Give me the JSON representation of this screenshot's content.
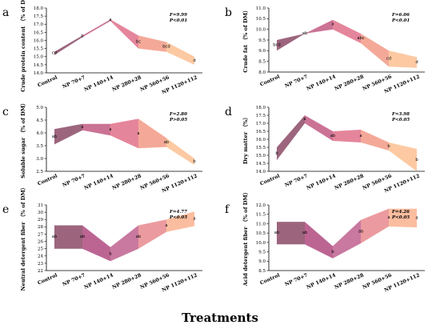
{
  "figure": {
    "x_title": "Treatments",
    "categories": [
      "Control",
      "NP 70+7",
      "NP 140+14",
      "NP 280+28",
      "NP 560+56",
      "NP 1120+112"
    ]
  },
  "chart_data": [
    {
      "type": "area",
      "panel_label": "a",
      "ylabel": "Crude protein content （% of DM）",
      "stat_f": "F=9.99",
      "stat_p": "P<0.01",
      "ylim": [
        14.0,
        18.0
      ],
      "yticks": [
        "14.0",
        "14.5",
        "15.0",
        "15.5",
        "16.0",
        "16.5",
        "17.0",
        "17.5",
        "18.0"
      ],
      "upper": [
        15.3,
        16.3,
        17.3,
        16.3,
        15.9,
        15.0
      ],
      "lower": [
        15.1,
        16.2,
        17.2,
        15.5,
        15.3,
        14.5
      ],
      "letters": [
        "cd",
        "b",
        "a",
        "bc",
        "bcd",
        "d"
      ],
      "colors": [
        "#8b4a66",
        "#c25a82",
        "#e0708a",
        "#f29a86",
        "#fbbf92"
      ]
    },
    {
      "type": "area",
      "panel_label": "b",
      "ylabel": "Crude fat （% of DM）",
      "stat_f": "F=6.06",
      "stat_p": "P<0.01",
      "ylim": [
        8.0,
        11.0
      ],
      "yticks": [
        "8.0",
        "8.5",
        "9.0",
        "9.5",
        "10.0",
        "10.5",
        "11.0"
      ],
      "upper": [
        9.5,
        9.8,
        10.45,
        9.8,
        9.0,
        8.7
      ],
      "lower": [
        9.0,
        9.8,
        10.0,
        9.35,
        8.25,
        8.2
      ],
      "letters": [
        "bcd",
        "ab",
        "a",
        "abc",
        "cd",
        "d"
      ],
      "colors": [
        "#8b4a66",
        "#c25a82",
        "#e0708a",
        "#f29a86",
        "#fbbf92"
      ]
    },
    {
      "type": "area",
      "panel_label": "c",
      "ylabel": "Soluble sugar （% of DM）",
      "stat_f": "F=2.80",
      "stat_p": "P>0.05",
      "ylim": [
        2.5,
        5.0
      ],
      "yticks": [
        "2.5",
        "3.0",
        "3.5",
        "4.0",
        "4.5",
        "5.0"
      ],
      "upper": [
        4.15,
        4.35,
        4.35,
        4.55,
        3.8,
        3.0
      ],
      "lower": [
        3.55,
        4.1,
        3.9,
        3.4,
        3.45,
        2.75
      ],
      "letters": [
        "ab",
        "a",
        "a",
        "a",
        "ab",
        "b"
      ],
      "colors": [
        "#8b4a66",
        "#c25a82",
        "#e0708a",
        "#f29a86",
        "#fbbf92"
      ]
    },
    {
      "type": "area",
      "panel_label": "d",
      "ylabel": "Dry matter （%）",
      "stat_f": "F=3.98",
      "stat_p": "P<0.05",
      "ylim": [
        14.0,
        18.0
      ],
      "yticks": [
        "14.0",
        "14.5",
        "15.0",
        "15.5",
        "16.0",
        "16.5",
        "17.0",
        "17.5",
        "18.0"
      ],
      "upper": [
        15.5,
        17.5,
        16.5,
        16.6,
        15.8,
        15.4
      ],
      "lower": [
        14.7,
        17.0,
        15.9,
        15.8,
        15.3,
        14.0
      ],
      "letters": [
        "b",
        "a",
        "ab",
        "a",
        "b",
        "b"
      ],
      "colors": [
        "#8b4a66",
        "#c25a82",
        "#e0708a",
        "#f29a86",
        "#fbbf92"
      ]
    },
    {
      "type": "area",
      "panel_label": "e",
      "ylabel": "Neutral detergent fiber （% of DM）",
      "stat_f": "F=4.77",
      "stat_p": "P<0.05",
      "ylim": [
        22,
        31
      ],
      "yticks": [
        "22",
        "23",
        "24",
        "25",
        "26",
        "27",
        "28",
        "29",
        "30",
        "31"
      ],
      "upper": [
        28.2,
        28.2,
        25.2,
        28.2,
        29.0,
        30.1
      ],
      "lower": [
        25.0,
        25.0,
        23.3,
        25.0,
        27.3,
        28.1
      ],
      "letters": [
        "ab",
        "ab",
        "b",
        "ab",
        "a",
        "a"
      ],
      "colors": [
        "#8b4a66",
        "#b04a80",
        "#c0608e",
        "#e88a8e",
        "#fab28e"
      ]
    },
    {
      "type": "area",
      "panel_label": "f",
      "ylabel": "Acid detergent fiber （% of DM）",
      "stat_f": "F=4.26",
      "stat_p": "P<0.05",
      "ylim": [
        8.5,
        12.0
      ],
      "yticks": [
        "8.5",
        "9.0",
        "9.5",
        "10.0",
        "10.5",
        "11.0",
        "11.5",
        "12.0"
      ],
      "upper": [
        11.1,
        11.1,
        9.8,
        11.2,
        11.8,
        11.8
      ],
      "lower": [
        9.9,
        9.9,
        9.15,
        9.95,
        10.85,
        10.8
      ],
      "letters": [
        "ab",
        "ab",
        "b",
        "ab",
        "a",
        "a"
      ],
      "colors": [
        "#8b4a66",
        "#b04a80",
        "#c0608e",
        "#e88a8e",
        "#fab28e"
      ]
    }
  ]
}
